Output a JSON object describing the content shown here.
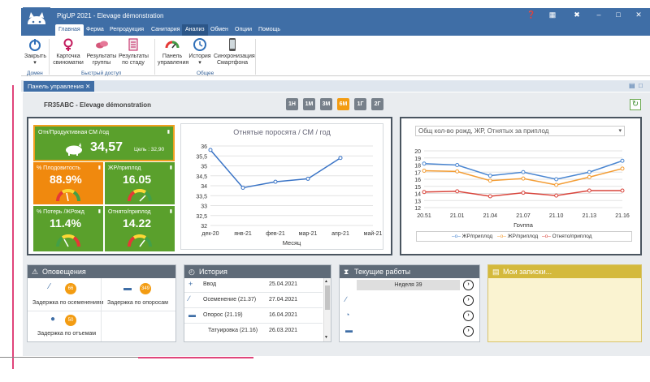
{
  "app": {
    "title": "PigUP 2021 - Elevage démonstration"
  },
  "menu": [
    "Главная",
    "Ферма",
    "Репродукция",
    "Санитария",
    "Анализ",
    "Обмен",
    "Опции",
    "Помощь"
  ],
  "ribbon": {
    "buttons": [
      "Закрыть",
      "Карточка свиноматки",
      "Результаты группы",
      "Результаты по стаду",
      "Панель управления",
      "История",
      "Синхронизация Смартфона"
    ],
    "groups": [
      "Домен",
      "Быстрый доступ",
      "Общее"
    ]
  },
  "tab": {
    "label": "Панель управления"
  },
  "header": {
    "title": "FR35ABC - Elevage démonstration",
    "periods": [
      "1Н",
      "1М",
      "3М",
      "6М",
      "1Г",
      "2Г"
    ],
    "active_period": "6М"
  },
  "kpis": {
    "main": {
      "label": "Отн/Продуктивная СМ /год",
      "value": "34,57",
      "target": "Цель : 32,90"
    },
    "tiles": [
      {
        "label": "% Плодовитость",
        "value": "88.9%",
        "color": "#f0890e"
      },
      {
        "label": "ЖР/приплод",
        "value": "16.05",
        "color": "#5aa02c"
      },
      {
        "label": "% Потерь /ЖРожд",
        "value": "11.4%",
        "color": "#5aa02c"
      },
      {
        "label": "Отнято/приплод",
        "value": "14.22",
        "color": "#5aa02c"
      }
    ]
  },
  "chart_data": [
    {
      "type": "line",
      "title": "Отнятые поросята / СМ / год",
      "xlabel": "Месяц",
      "ylabel": "",
      "categories": [
        "дек-20",
        "янв-21",
        "фев-21",
        "мар-21",
        "апр-21",
        "май-21"
      ],
      "series": [
        {
          "name": "",
          "values": [
            35.8,
            33.9,
            34.2,
            34.35,
            35.4,
            null
          ]
        }
      ],
      "ylim": [
        32,
        36
      ],
      "yticks": [
        "32",
        "32,5",
        "33",
        "33,5",
        "34",
        "34,5",
        "35",
        "35,5",
        "36"
      ],
      "grid": true,
      "color": "#3a74c6"
    },
    {
      "type": "line",
      "title": "Общ кол-во рожд, ЖР, Отнятых за приплод",
      "xlabel": "Группа",
      "ylabel": "",
      "categories": [
        "20.51",
        "21.01",
        "21.04",
        "21.07",
        "21.10",
        "21.13",
        "21.16"
      ],
      "series": [
        {
          "name": "ЖР/приплод",
          "values": [
            18.2,
            18.0,
            16.5,
            17.0,
            16.0,
            17.0,
            18.6
          ],
          "color": "#4a86d1"
        },
        {
          "name": "ЖР/приплод",
          "values": [
            17.2,
            17.1,
            15.8,
            16.1,
            15.2,
            16.3,
            17.5
          ],
          "color": "#f39c33"
        },
        {
          "name": "Отнято/приплод",
          "values": [
            14.2,
            14.3,
            13.6,
            14.1,
            13.7,
            14.4,
            14.4
          ],
          "color": "#d9453c"
        }
      ],
      "ylim": [
        12,
        20
      ],
      "yticks": [
        "12",
        "13",
        "14",
        "15",
        "16",
        "17",
        "18",
        "19",
        "20"
      ],
      "grid": true,
      "legend": "bottom"
    }
  ],
  "dropdown": {
    "value": "Общ кол-во рожд, ЖР, Отнятых за приплод"
  },
  "alerts": {
    "title": "Оповещения",
    "items": [
      {
        "label": "Задержка по осеменениям",
        "count": "66"
      },
      {
        "label": "Задержка по опоросам",
        "count": "349"
      },
      {
        "label": "Задержка по отъемам",
        "count": "50"
      }
    ]
  },
  "history": {
    "title": "История",
    "rows": [
      {
        "label": "Ввод",
        "date": "25.04.2021"
      },
      {
        "label": "Осеменение (21.37)",
        "date": "27.04.2021"
      },
      {
        "label": "Опорос (21.19)",
        "date": "16.04.2021"
      },
      {
        "label": "Татуировка (21.16)",
        "date": "26.03.2021"
      }
    ]
  },
  "works": {
    "title": "Текущие работы",
    "week": "Неделя 39"
  },
  "notes": {
    "title": "Мои записки..."
  }
}
